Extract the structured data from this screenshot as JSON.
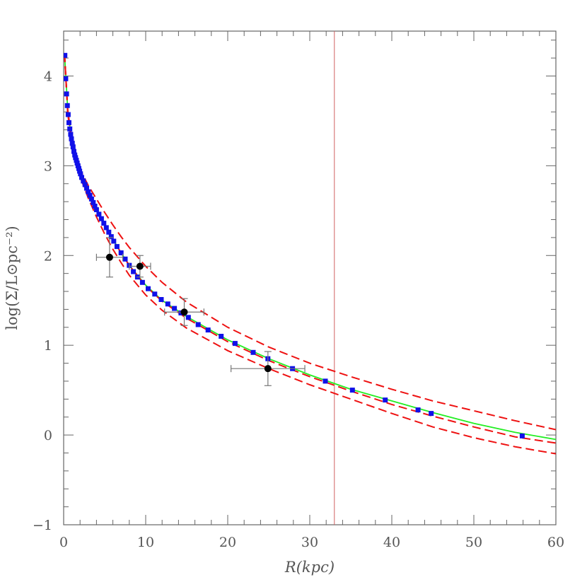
{
  "chart_data": {
    "type": "scatter",
    "xlabel": "R(kpc)",
    "ylabel": "log(Σ/L⊙pc⁻²)",
    "xlim": [
      0,
      60
    ],
    "ylim": [
      -1,
      4.5
    ],
    "xticks": [
      0,
      10,
      20,
      30,
      40,
      50,
      60
    ],
    "yticks": [
      -1,
      0,
      1,
      2,
      3,
      4
    ],
    "vertical_line_x": 33,
    "colors": {
      "frame": "#666666",
      "data_points": "#1010e8",
      "fit_line": "#22ee22",
      "model_curves": "#ee1111",
      "vertical_line": "#d06060",
      "labeled_points": "#000000",
      "error_bars": "#777777"
    },
    "series": [
      {
        "style": "blue-squares",
        "points": [
          [
            0.15,
            4.23
          ],
          [
            0.25,
            3.97
          ],
          [
            0.35,
            3.8
          ],
          [
            0.45,
            3.67
          ],
          [
            0.55,
            3.57
          ],
          [
            0.65,
            3.48
          ],
          [
            0.75,
            3.41
          ],
          [
            0.85,
            3.35
          ],
          [
            0.95,
            3.3
          ],
          [
            1.05,
            3.25
          ],
          [
            1.15,
            3.21
          ],
          [
            1.25,
            3.16
          ],
          [
            1.35,
            3.12
          ],
          [
            1.45,
            3.09
          ],
          [
            1.55,
            3.06
          ],
          [
            1.65,
            3.03
          ],
          [
            1.75,
            3.0
          ],
          [
            1.85,
            2.97
          ],
          [
            1.95,
            2.94
          ],
          [
            2.05,
            2.91
          ],
          [
            2.2,
            2.87
          ],
          [
            2.4,
            2.83
          ],
          [
            2.6,
            2.79
          ],
          [
            2.8,
            2.75
          ],
          [
            3.0,
            2.71
          ],
          [
            3.2,
            2.67
          ],
          [
            3.4,
            2.63
          ],
          [
            3.6,
            2.59
          ],
          [
            3.8,
            2.55
          ],
          [
            4.0,
            2.51
          ],
          [
            4.3,
            2.46
          ],
          [
            4.6,
            2.41
          ],
          [
            4.9,
            2.36
          ],
          [
            5.2,
            2.31
          ],
          [
            5.5,
            2.26
          ],
          [
            5.8,
            2.21
          ],
          [
            6.1,
            2.16
          ],
          [
            6.5,
            2.1
          ],
          [
            7.0,
            2.03
          ],
          [
            7.5,
            1.96
          ],
          [
            8.0,
            1.89
          ],
          [
            8.5,
            1.82
          ],
          [
            9.0,
            1.76
          ],
          [
            9.6,
            1.7
          ],
          [
            10.3,
            1.63
          ],
          [
            11.1,
            1.57
          ],
          [
            11.9,
            1.51
          ],
          [
            12.7,
            1.46
          ],
          [
            13.5,
            1.41
          ],
          [
            14.3,
            1.36
          ],
          [
            15.2,
            1.31
          ],
          [
            16.4,
            1.23
          ],
          [
            17.6,
            1.17
          ],
          [
            19.2,
            1.1
          ],
          [
            20.9,
            1.02
          ],
          [
            23.1,
            0.92
          ],
          [
            24.9,
            0.85
          ],
          [
            27.9,
            0.74
          ],
          [
            31.9,
            0.6
          ],
          [
            35.2,
            0.5
          ],
          [
            39.2,
            0.39
          ],
          [
            43.2,
            0.28
          ],
          [
            44.8,
            0.24
          ],
          [
            55.9,
            -0.01
          ]
        ]
      },
      {
        "style": "green-line",
        "points": [
          [
            0.1,
            4.25
          ],
          [
            0.5,
            3.62
          ],
          [
            1,
            3.27
          ],
          [
            2,
            2.92
          ],
          [
            3,
            2.71
          ],
          [
            4,
            2.52
          ],
          [
            5,
            2.34
          ],
          [
            6,
            2.18
          ],
          [
            7,
            2.03
          ],
          [
            8,
            1.89
          ],
          [
            10,
            1.67
          ],
          [
            12,
            1.5
          ],
          [
            15,
            1.32
          ],
          [
            20,
            1.06
          ],
          [
            25,
            0.85
          ],
          [
            30,
            0.67
          ],
          [
            35,
            0.51
          ],
          [
            40,
            0.38
          ],
          [
            45,
            0.25
          ],
          [
            50,
            0.13
          ],
          [
            55,
            0.03
          ],
          [
            60,
            -0.05
          ]
        ]
      },
      {
        "style": "red-dashed",
        "points": [
          [
            0.1,
            4.25
          ],
          [
            0.5,
            3.62
          ],
          [
            1,
            3.29
          ],
          [
            2,
            2.96
          ],
          [
            3,
            2.78
          ],
          [
            4,
            2.63
          ],
          [
            5,
            2.48
          ],
          [
            6,
            2.34
          ],
          [
            7,
            2.21
          ],
          [
            8,
            2.09
          ],
          [
            10,
            1.88
          ],
          [
            12,
            1.7
          ],
          [
            15,
            1.48
          ],
          [
            20,
            1.2
          ],
          [
            25,
            0.98
          ],
          [
            30,
            0.8
          ],
          [
            35,
            0.65
          ],
          [
            40,
            0.51
          ],
          [
            45,
            0.38
          ],
          [
            50,
            0.27
          ],
          [
            55,
            0.16
          ],
          [
            60,
            0.06
          ]
        ]
      },
      {
        "style": "red-dashed",
        "points": [
          [
            0.1,
            4.25
          ],
          [
            0.5,
            3.6
          ],
          [
            1,
            3.26
          ],
          [
            2,
            2.92
          ],
          [
            3,
            2.71
          ],
          [
            4,
            2.52
          ],
          [
            5,
            2.34
          ],
          [
            6,
            2.18
          ],
          [
            7,
            2.03
          ],
          [
            8,
            1.89
          ],
          [
            10,
            1.66
          ],
          [
            12,
            1.49
          ],
          [
            15,
            1.3
          ],
          [
            20,
            1.04
          ],
          [
            25,
            0.83
          ],
          [
            30,
            0.65
          ],
          [
            35,
            0.49
          ],
          [
            40,
            0.34
          ],
          [
            45,
            0.21
          ],
          [
            50,
            0.09
          ],
          [
            55,
            -0.02
          ],
          [
            60,
            -0.09
          ]
        ]
      },
      {
        "style": "red-dashed",
        "points": [
          [
            0.1,
            4.25
          ],
          [
            0.5,
            3.58
          ],
          [
            1,
            3.23
          ],
          [
            2,
            2.88
          ],
          [
            3,
            2.64
          ],
          [
            4,
            2.43
          ],
          [
            5,
            2.24
          ],
          [
            6,
            2.07
          ],
          [
            7,
            1.92
          ],
          [
            8,
            1.78
          ],
          [
            10,
            1.56
          ],
          [
            12,
            1.39
          ],
          [
            15,
            1.19
          ],
          [
            20,
            0.94
          ],
          [
            25,
            0.74
          ],
          [
            30,
            0.56
          ],
          [
            35,
            0.4
          ],
          [
            40,
            0.24
          ],
          [
            45,
            0.09
          ],
          [
            50,
            -0.03
          ],
          [
            55,
            -0.13
          ],
          [
            60,
            -0.21
          ]
        ]
      },
      {
        "style": "black-circles-errorbars",
        "points": [
          {
            "x": 5.6,
            "y": 1.98,
            "xlo": 4.0,
            "xhi": 7.2,
            "ylo": 1.76,
            "yhi": 2.2
          },
          {
            "x": 9.3,
            "y": 1.88,
            "xlo": 8.0,
            "xhi": 10.6,
            "ylo": 1.76,
            "yhi": 2.0
          },
          {
            "x": 14.7,
            "y": 1.37,
            "xlo": 12.3,
            "xhi": 17.1,
            "ylo": 1.22,
            "yhi": 1.52
          },
          {
            "x": 24.9,
            "y": 0.74,
            "xlo": 20.4,
            "xhi": 29.4,
            "ylo": 0.55,
            "yhi": 0.93
          }
        ]
      }
    ]
  }
}
